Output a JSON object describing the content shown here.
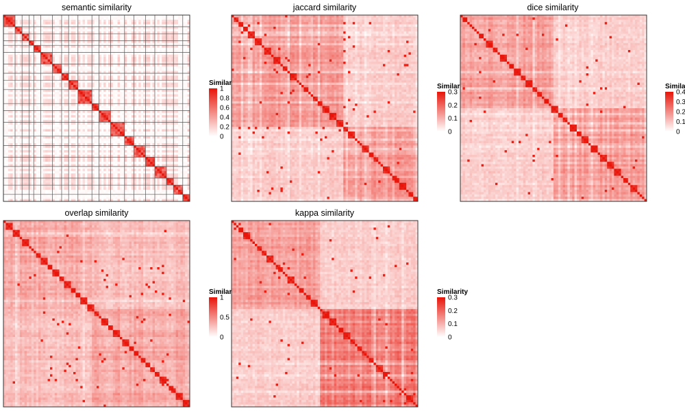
{
  "chart_data": [
    {
      "type": "heatmap",
      "title": "semantic similarity",
      "matrix_size": 80,
      "pattern": "semantic",
      "seed": 11,
      "cluster_blocks": [
        5,
        3,
        3,
        2,
        3,
        5,
        4,
        3,
        4,
        6,
        3,
        5,
        6,
        4,
        5,
        4,
        5,
        3,
        4,
        3
      ],
      "value_range": [
        0,
        1
      ],
      "legend": {
        "title": "Similarity",
        "ticks": [
          "1",
          "0.8",
          "0.6",
          "0.4",
          "0.2",
          "0"
        ]
      },
      "color_low": "#ffffff",
      "color_high": "#e8150a"
    },
    {
      "type": "heatmap",
      "title": "jaccard similarity",
      "matrix_size": 80,
      "pattern": "jaccard",
      "seed": 23,
      "value_range": [
        0,
        0.3
      ],
      "legend": {
        "title": "Similarity",
        "ticks": [
          "0.3",
          "0.2",
          "0.1",
          "0"
        ]
      },
      "color_low": "#ffffff",
      "color_high": "#e8150a"
    },
    {
      "type": "heatmap",
      "title": "dice similarity",
      "matrix_size": 80,
      "pattern": "dice",
      "seed": 37,
      "value_range": [
        0,
        0.4
      ],
      "legend": {
        "title": "Similarity",
        "ticks": [
          "0.4",
          "0.3",
          "0.2",
          "0.1",
          "0"
        ]
      },
      "color_low": "#ffffff",
      "color_high": "#e8150a"
    },
    {
      "type": "heatmap",
      "title": "overlap similarity",
      "matrix_size": 80,
      "pattern": "overlap",
      "seed": 41,
      "value_range": [
        0,
        1
      ],
      "legend": {
        "title": "Similarity",
        "ticks": [
          "1",
          "0.5",
          "0"
        ]
      },
      "color_low": "#ffffff",
      "color_high": "#e8150a"
    },
    {
      "type": "heatmap",
      "title": "kappa similarity",
      "matrix_size": 80,
      "pattern": "kappa",
      "seed": 53,
      "value_range": [
        0,
        0.3
      ],
      "legend": {
        "title": "Similarity",
        "ticks": [
          "0.3",
          "0.2",
          "0.1",
          "0"
        ]
      },
      "color_low": "#ffffff",
      "color_high": "#e8150a"
    }
  ]
}
